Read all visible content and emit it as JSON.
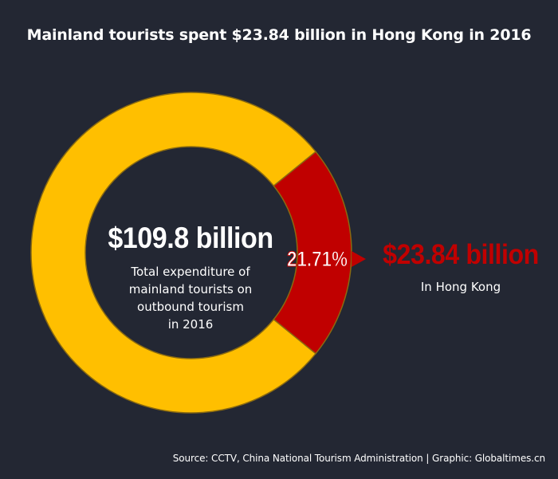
{
  "title": "Mainland tourists spent $23.84 billion in Hong Kong in 2016",
  "center": {
    "value": "$109.8 billion",
    "caption_lines": [
      "Total expenditure of",
      "mainland tourists on",
      "outbound tourism",
      "in 2016"
    ]
  },
  "highlight": {
    "percent_label": "21.71%",
    "value": "$23.84 billion",
    "caption": "In Hong Kong"
  },
  "source": "Source: CCTV, China National Tourism Administration | Graphic: Globaltimes.cn",
  "chart_data": {
    "type": "pie",
    "title": "Mainland tourists spent $23.84 billion in Hong Kong in 2016",
    "total_label": "$109.8 billion",
    "slices": [
      {
        "value": 21.71,
        "label": "21.71%",
        "color": "#c00000"
      },
      {
        "value": 78.29,
        "label": "",
        "color": "#ffbf00"
      }
    ],
    "colors": {
      "background": "#232733",
      "highlight": "#c00000",
      "remainder": "#ffbf00"
    }
  }
}
